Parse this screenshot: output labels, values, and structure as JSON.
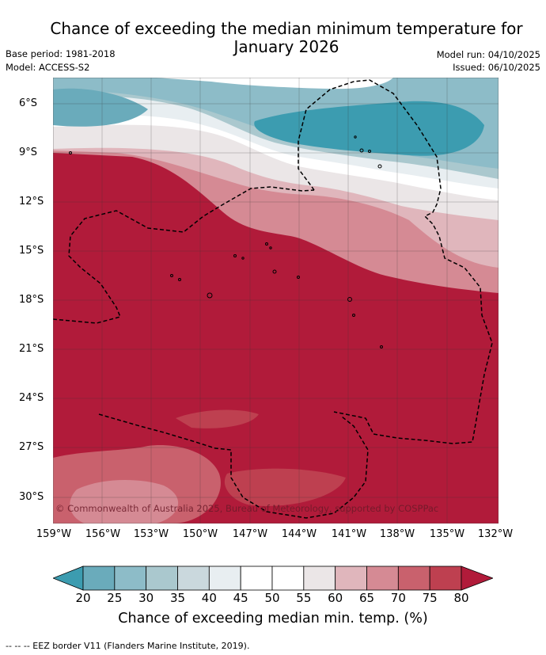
{
  "title_line1": "Chance of exceeding the median minimum temperature for",
  "title_line2": "January 2026",
  "base_period": "Base period: 1981-2018",
  "model": "Model: ACCESS-S2",
  "model_run": "Model run: 04/10/2025",
  "issued": "Issued: 06/10/2025",
  "map": {
    "lat_labels": [
      "6°S",
      "9°S",
      "12°S",
      "15°S",
      "18°S",
      "21°S",
      "24°S",
      "27°S",
      "30°S"
    ],
    "lon_labels": [
      "159°W",
      "156°W",
      "153°W",
      "150°W",
      "147°W",
      "144°W",
      "141°W",
      "138°W",
      "135°W",
      "132°W"
    ],
    "copyright": "© Commonwealth of Australia 2025, Bureau of Meteorology, supported by COSPPac"
  },
  "colorbar": {
    "ticks": [
      "20",
      "25",
      "30",
      "35",
      "40",
      "45",
      "50",
      "55",
      "60",
      "65",
      "70",
      "75",
      "80"
    ],
    "colors": [
      "#3c9cb0",
      "#6aabbb",
      "#8dbcc8",
      "#aac8ce",
      "#cad8dd",
      "#e8eef1",
      "#ffffff",
      "#ffffff",
      "#ebe6e7",
      "#e0b6bc",
      "#d58a94",
      "#c9616d",
      "#be4050",
      "#b11b3a"
    ],
    "label": "Chance of exceeding median min. temp. (%)"
  },
  "footer": "--  --  -- EEZ border V11 (Flanders Marine Institute, 2019)."
}
